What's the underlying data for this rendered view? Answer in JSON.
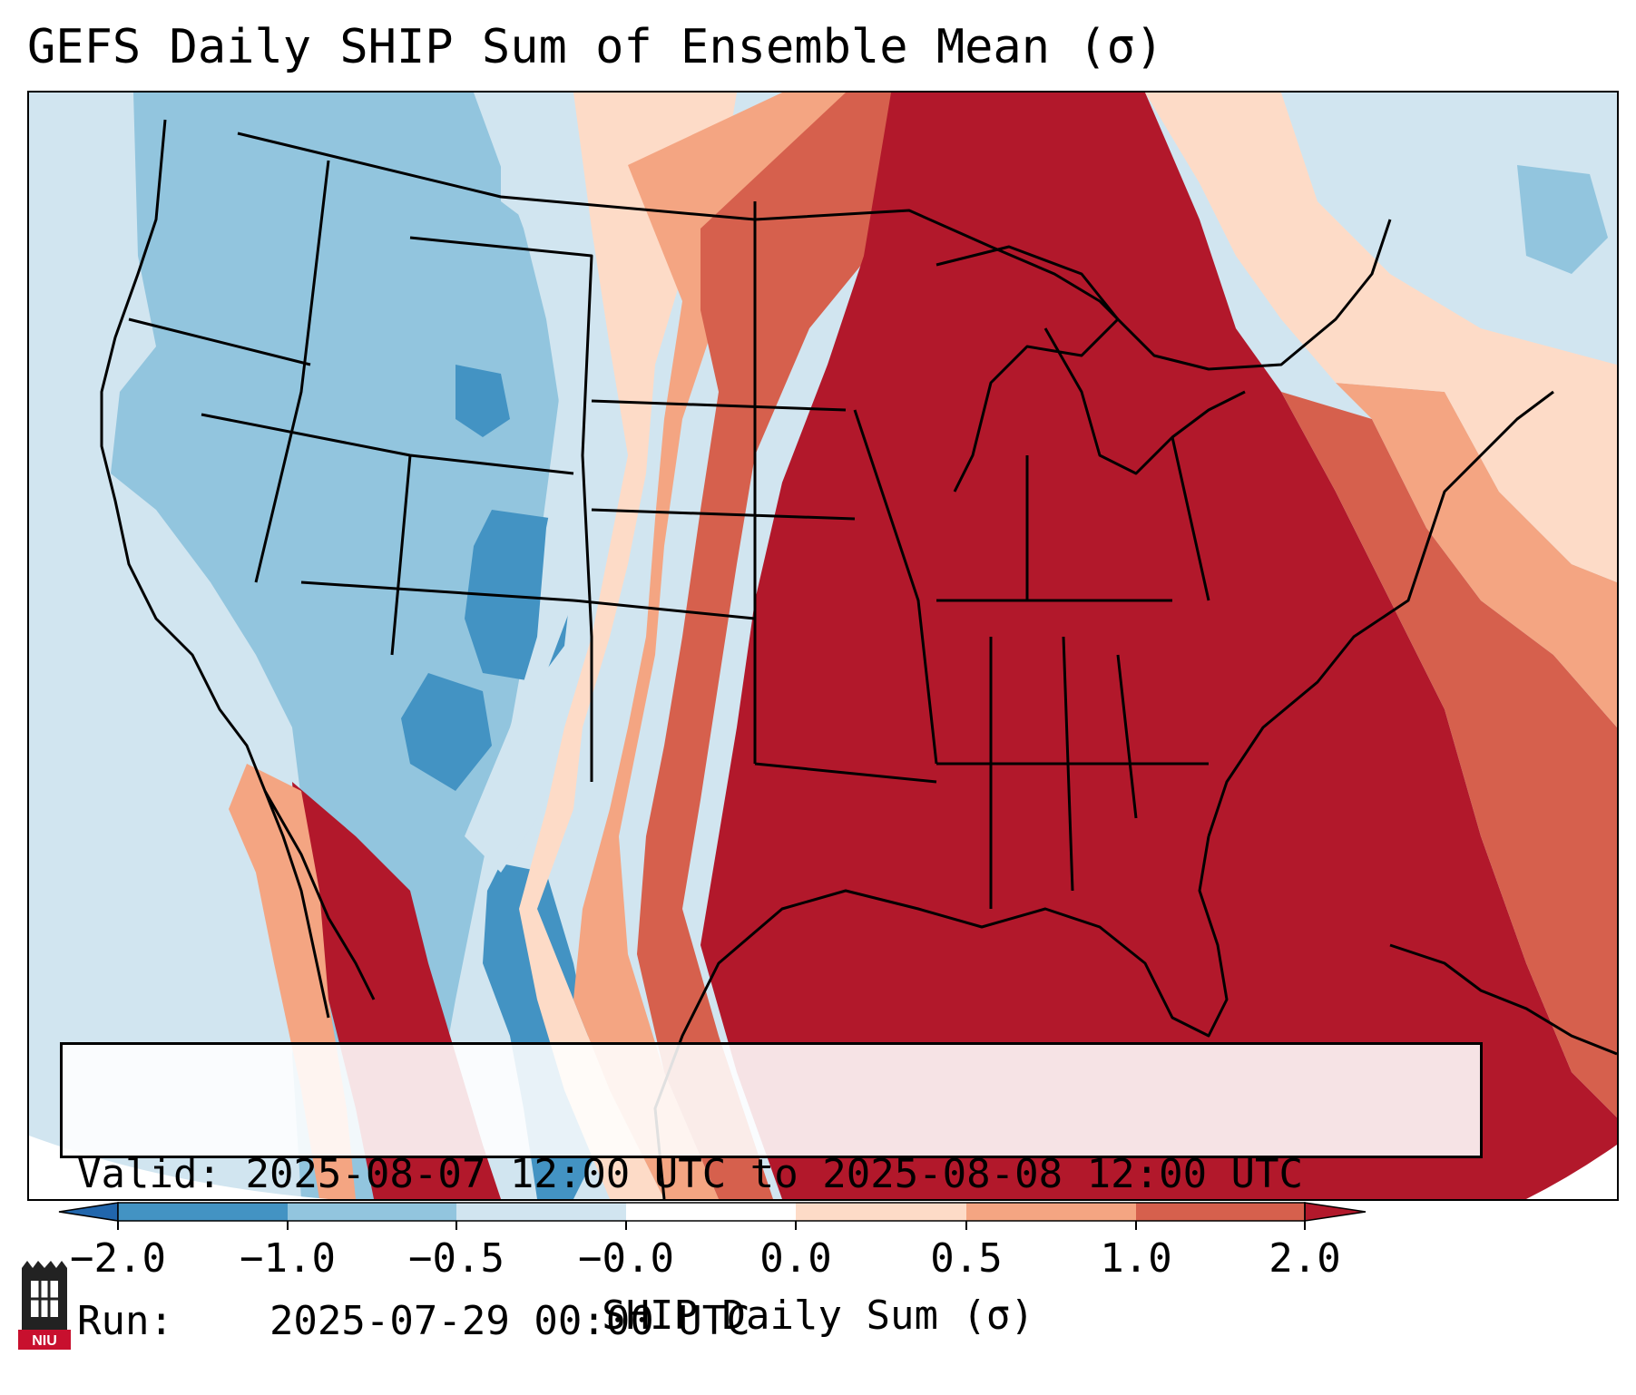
{
  "title": "GEFS Daily SHIP Sum of Ensemble Mean (σ)",
  "info": {
    "valid_label": "Valid:",
    "valid_value": "2025-08-07 12:00 UTC to 2025-08-08 12:00 UTC",
    "run_label": "Run:",
    "run_value": "2025-07-29 00:00 UTC"
  },
  "colorbar": {
    "title": "SHIP Daily Sum (σ)",
    "tick_labels": [
      "−2.0",
      "−1.0",
      "−0.5",
      "−0.0",
      "0.0",
      "0.5",
      "1.0",
      "2.0"
    ],
    "bins": [
      {
        "range": "< -2.0",
        "color": "#2166ac"
      },
      {
        "range": "-2.0 to -1.0",
        "color": "#4393c3"
      },
      {
        "range": "-1.0 to -0.5",
        "color": "#92c5de"
      },
      {
        "range": "-0.5 to -0.0",
        "color": "#d1e5f0"
      },
      {
        "range": "-0.0 to 0.0",
        "color": "#ffffff"
      },
      {
        "range": "0.0 to 0.5",
        "color": "#fddbc7"
      },
      {
        "range": "0.5 to 1.0",
        "color": "#f4a582"
      },
      {
        "range": "1.0 to 2.0",
        "color": "#d6604d"
      },
      {
        "range": "> 2.0",
        "color": "#b2182b"
      }
    ]
  },
  "logo": {
    "text": "NIU",
    "color": "#c8102e"
  }
}
